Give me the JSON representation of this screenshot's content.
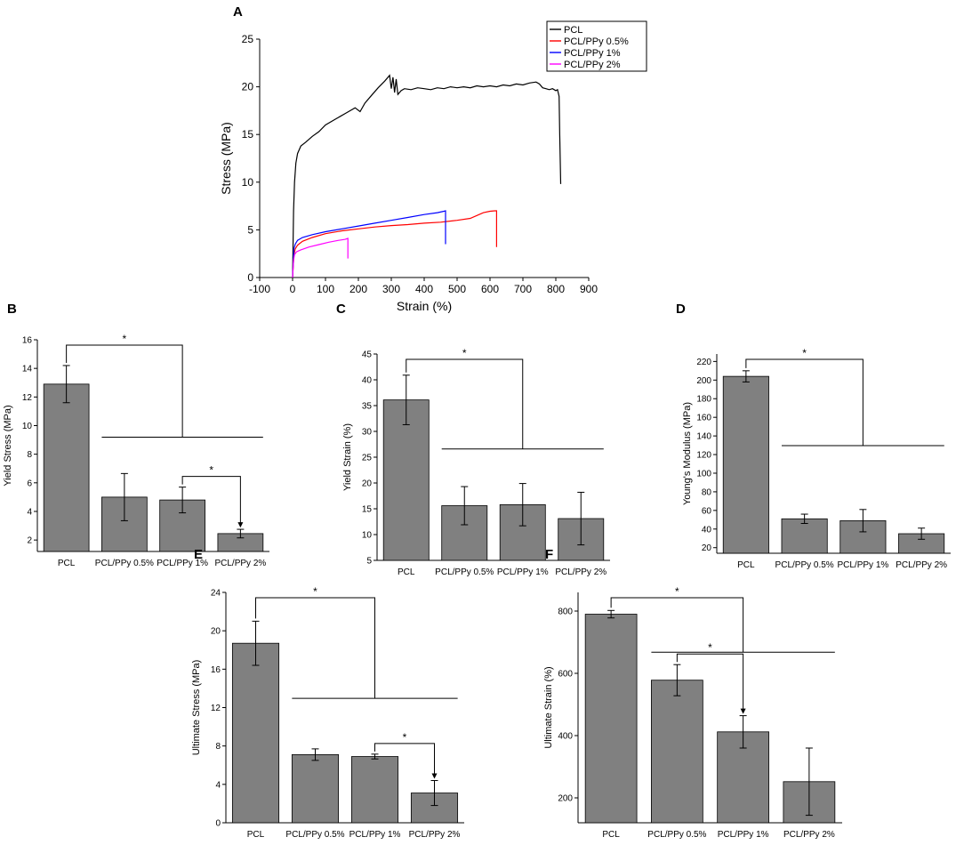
{
  "figure": {
    "colors": {
      "bar_fill": "#808080",
      "axis": "#000000",
      "PCL": "#000000",
      "PCL/PPy 0.5%": "#ff0000",
      "PCL/PPy 1%": "#0000ff",
      "PCL/PPy 2%": "#ff00ff"
    }
  },
  "chart_data": [
    {
      "panel": "A",
      "type": "line",
      "title": "",
      "xlabel": "Strain (%)",
      "ylabel": "Stress (MPa)",
      "xlim": [
        -100,
        900
      ],
      "ylim": [
        0,
        25
      ],
      "xticks": [
        -100,
        0,
        100,
        200,
        300,
        400,
        500,
        600,
        700,
        800,
        900
      ],
      "yticks": [
        0,
        5,
        10,
        15,
        20,
        25
      ],
      "legend": [
        "PCL",
        "PCL/PPy 0.5%",
        "PCL/PPy 1%",
        "PCL/PPy 2%"
      ],
      "legend_position": "top-right",
      "series": [
        {
          "name": "PCL",
          "x": [
            0,
            3,
            6,
            10,
            15,
            25,
            40,
            60,
            80,
            100,
            130,
            160,
            190,
            205,
            220,
            240,
            260,
            280,
            295,
            300,
            305,
            310,
            315,
            320,
            330,
            340,
            360,
            380,
            400,
            420,
            440,
            460,
            480,
            500,
            520,
            540,
            560,
            580,
            600,
            620,
            640,
            660,
            680,
            700,
            720,
            740,
            750,
            760,
            770,
            780,
            790,
            800,
            805,
            810,
            812,
            815
          ],
          "y": [
            0,
            7,
            10,
            12,
            13,
            13.8,
            14.2,
            14.8,
            15.3,
            16,
            16.6,
            17.2,
            17.8,
            17.4,
            18.3,
            19.1,
            19.9,
            20.6,
            21.2,
            19.8,
            21.0,
            19.4,
            20.8,
            19.2,
            19.6,
            19.8,
            19.7,
            19.9,
            19.8,
            19.7,
            19.9,
            19.8,
            20.0,
            19.9,
            20.0,
            19.9,
            20.1,
            20.0,
            20.1,
            20.0,
            20.2,
            20.1,
            20.3,
            20.2,
            20.4,
            20.5,
            20.3,
            19.9,
            19.8,
            19.7,
            19.8,
            19.6,
            19.7,
            19.0,
            15.0,
            9.8
          ]
        },
        {
          "name": "PCL/PPy 0.5%",
          "x": [
            0,
            4,
            8,
            15,
            30,
            60,
            100,
            150,
            200,
            250,
            300,
            350,
            400,
            450,
            500,
            540,
            560,
            580,
            600,
            615,
            620,
            620
          ],
          "y": [
            0,
            2.4,
            3.0,
            3.4,
            3.8,
            4.2,
            4.6,
            4.9,
            5.1,
            5.3,
            5.45,
            5.55,
            5.7,
            5.8,
            6.0,
            6.2,
            6.5,
            6.8,
            6.95,
            7.0,
            7.0,
            3.2
          ]
        },
        {
          "name": "PCL/PPy 1%",
          "x": [
            0,
            4,
            8,
            15,
            30,
            60,
            100,
            150,
            200,
            250,
            300,
            350,
            400,
            440,
            460,
            465,
            465
          ],
          "y": [
            0,
            3.0,
            3.5,
            3.9,
            4.2,
            4.5,
            4.8,
            5.1,
            5.4,
            5.7,
            6.0,
            6.3,
            6.6,
            6.8,
            6.95,
            7.0,
            3.5
          ]
        },
        {
          "name": "PCL/PPy 2%",
          "x": [
            0,
            3,
            6,
            12,
            25,
            50,
            80,
            110,
            140,
            160,
            168,
            168
          ],
          "y": [
            0,
            1.8,
            2.4,
            2.7,
            2.9,
            3.2,
            3.45,
            3.7,
            3.9,
            4.0,
            4.1,
            2.0
          ]
        }
      ]
    },
    {
      "panel": "B",
      "type": "bar",
      "categories": [
        "PCL",
        "PCL/PPy 0.5%",
        "PCL/PPy 1%",
        "PCL/PPy 2%"
      ],
      "values": [
        12.9,
        5.0,
        4.8,
        2.45
      ],
      "errors": [
        1.3,
        1.65,
        0.9,
        0.3
      ],
      "ylabel": "Yield Stress (MPa)",
      "xlabel": "",
      "ylim": [
        1.2,
        16
      ],
      "yticks": [
        2,
        4,
        6,
        8,
        10,
        12,
        14,
        16
      ],
      "significance": [
        {
          "from": 0,
          "to": "group",
          "label": "*"
        },
        {
          "from": 2,
          "to": 3,
          "label": "*"
        }
      ]
    },
    {
      "panel": "C",
      "type": "bar",
      "categories": [
        "PCL",
        "PCL/PPy 0.5%",
        "PCL/PPy 1%",
        "PCL/PPy 2%"
      ],
      "values": [
        36.1,
        15.6,
        15.8,
        13.1
      ],
      "errors": [
        4.8,
        3.7,
        4.1,
        5.1
      ],
      "ylabel": "Yield Strain (%)",
      "xlabel": "",
      "ylim": [
        5,
        45
      ],
      "yticks": [
        5,
        10,
        15,
        20,
        25,
        30,
        35,
        40,
        45
      ],
      "significance": [
        {
          "from": 0,
          "to": "group",
          "label": "*"
        }
      ]
    },
    {
      "panel": "D",
      "type": "bar",
      "categories": [
        "PCL",
        "PCL/PPy 0.5%",
        "PCL/PPy 1%",
        "PCL/PPy 2%"
      ],
      "values": [
        204,
        51,
        49,
        35
      ],
      "errors": [
        6,
        5,
        12,
        6
      ],
      "ylabel": "Young's Modulus (MPa)",
      "xlabel": "",
      "ylim": [
        14,
        228
      ],
      "yticks": [
        20,
        40,
        60,
        80,
        100,
        120,
        140,
        160,
        180,
        200,
        220
      ],
      "significance": [
        {
          "from": 0,
          "to": "group",
          "label": "*"
        }
      ]
    },
    {
      "panel": "E",
      "type": "bar",
      "categories": [
        "PCL",
        "PCL/PPy 0.5%",
        "PCL/PPy 1%",
        "PCL/PPy 2%"
      ],
      "values": [
        18.7,
        7.1,
        6.9,
        3.1
      ],
      "errors": [
        2.3,
        0.6,
        0.25,
        1.3
      ],
      "ylabel": "Ultimate Stress (MPa)",
      "xlabel": "",
      "ylim": [
        0,
        24
      ],
      "yticks": [
        0,
        4,
        8,
        12,
        16,
        20,
        24
      ],
      "significance": [
        {
          "from": 0,
          "to": "group",
          "label": "*"
        },
        {
          "from": 2,
          "to": 3,
          "label": "*"
        }
      ]
    },
    {
      "panel": "F",
      "type": "bar",
      "categories": [
        "PCL",
        "PCL/PPy 0.5%",
        "PCL/PPy 1%",
        "PCL/PPy 2%"
      ],
      "values": [
        790,
        578,
        412,
        252
      ],
      "errors": [
        12,
        50,
        52,
        108
      ],
      "ylabel": "Ultimate Strain (%)",
      "xlabel": "",
      "ylim": [
        120,
        860
      ],
      "yticks": [
        200,
        400,
        600,
        800
      ],
      "significance": [
        {
          "from": 0,
          "to": "group",
          "label": "*"
        },
        {
          "from": 1,
          "to": 2,
          "label": "*"
        }
      ]
    }
  ]
}
